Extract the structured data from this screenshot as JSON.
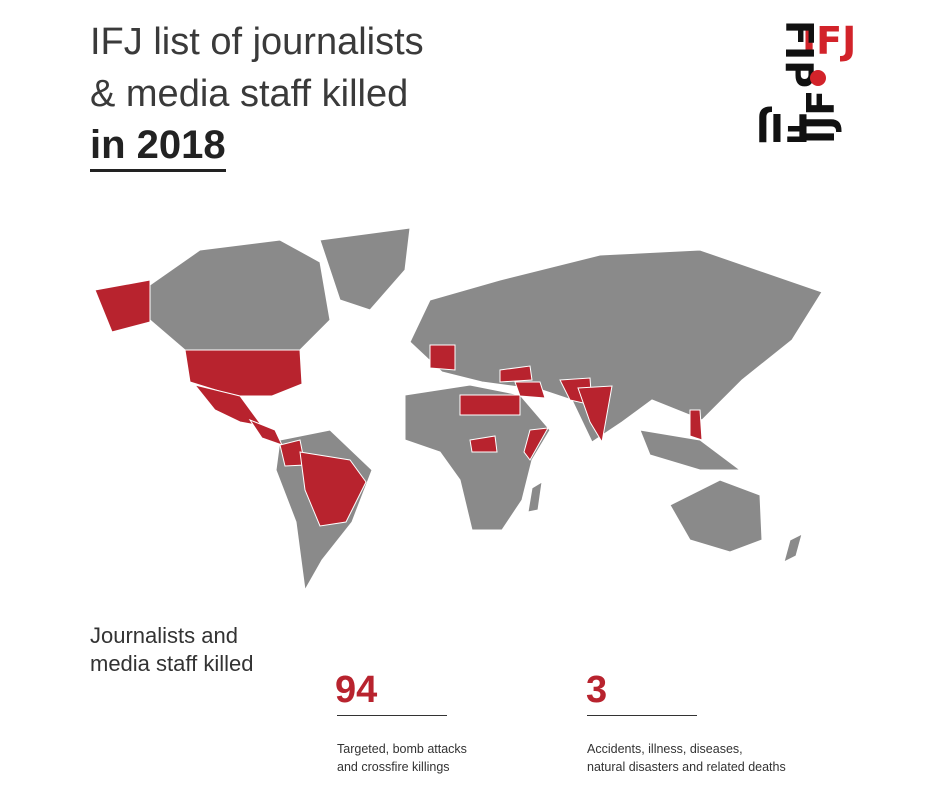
{
  "header": {
    "title_lines": [
      "IFJ list of journalists",
      "& media staff killed"
    ],
    "year_line": "in 2018"
  },
  "logo": {
    "labels": [
      "IFJ",
      "FIP",
      "FIJ",
      "IJF"
    ]
  },
  "summary": {
    "heading_lines": [
      "Journalists and",
      "media staff killed"
    ],
    "stats": [
      {
        "number": 94,
        "description_lines": [
          "Targeted, bomb attacks",
          "and crossfire killings"
        ]
      },
      {
        "number": 3,
        "description_lines": [
          "Accidents, illness, diseases,",
          "natural disasters and related deaths"
        ]
      }
    ]
  }
}
